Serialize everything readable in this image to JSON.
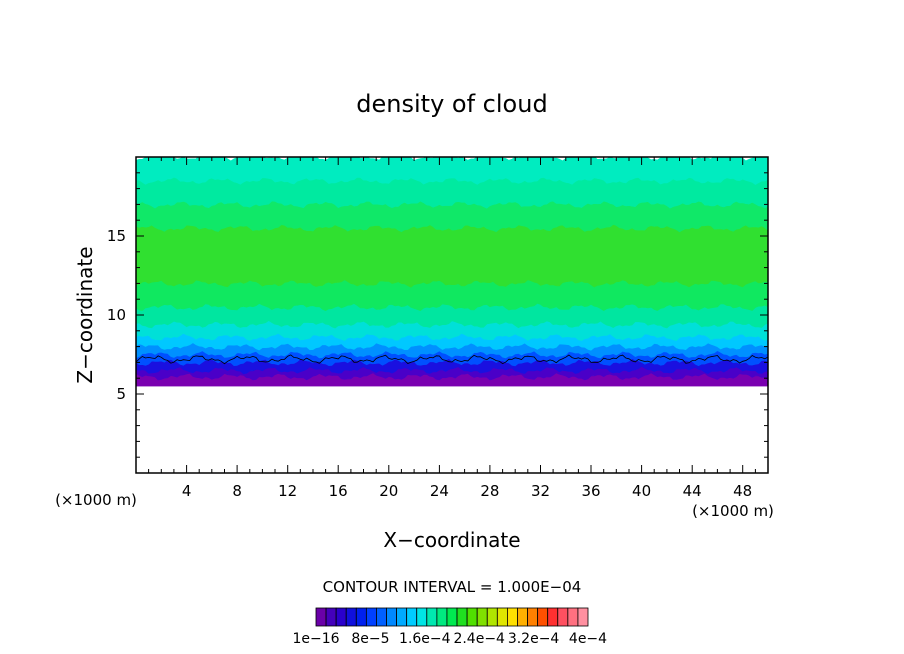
{
  "chart_data": {
    "type": "heatmap",
    "title": "density of cloud",
    "xlabel": "X−coordinate",
    "ylabel": "Z−coordinate",
    "x_unit_label": "(×1000 m)",
    "y_unit_label": "(×1000 m)",
    "xlim": [
      0,
      50
    ],
    "ylim": [
      0,
      20
    ],
    "x_ticks": [
      4,
      8,
      12,
      16,
      20,
      24,
      28,
      32,
      36,
      40,
      44,
      48
    ],
    "y_ticks": [
      5,
      10,
      15
    ],
    "contour_interval_label": "CONTOUR INTERVAL = 1.000E−04",
    "colorbar": {
      "labels": [
        "1e−16",
        "8e−5",
        "1.6e−4",
        "2.4e−4",
        "3.2e−4",
        "4e−4"
      ],
      "label_values": [
        1e-16,
        8e-05,
        0.00016,
        0.00024,
        0.00032,
        0.0004
      ],
      "colors": [
        "#6a00a8",
        "#4400bb",
        "#2a00cc",
        "#1010dd",
        "#0020ee",
        "#0040ff",
        "#0060ff",
        "#0088ff",
        "#00aaff",
        "#00ccff",
        "#00e5e5",
        "#00e8b0",
        "#00ea80",
        "#00ea50",
        "#20e020",
        "#50e000",
        "#80e000",
        "#b0e600",
        "#e0e600",
        "#ffe000",
        "#ffb000",
        "#ff8000",
        "#ff5000",
        "#ff3030",
        "#ff5060",
        "#ff7080",
        "#ff90a0"
      ]
    },
    "layers": [
      {
        "z_bottom": 0.0,
        "z_top": 5.5,
        "color": "#ffffff"
      },
      {
        "z_bottom": 5.5,
        "z_top": 6.1,
        "color": "#7a00b0"
      },
      {
        "z_bottom": 6.1,
        "z_top": 6.5,
        "color": "#4a00c8"
      },
      {
        "z_bottom": 6.5,
        "z_top": 7.0,
        "color": "#1a10e0"
      },
      {
        "z_bottom": 7.0,
        "z_top": 7.5,
        "color": "#0050ff"
      },
      {
        "z_bottom": 7.5,
        "z_top": 8.0,
        "color": "#0090ff"
      },
      {
        "z_bottom": 8.0,
        "z_top": 8.6,
        "color": "#00c8ff"
      },
      {
        "z_bottom": 8.6,
        "z_top": 9.4,
        "color": "#00e0d8"
      },
      {
        "z_bottom": 9.4,
        "z_top": 10.5,
        "color": "#00e6a0"
      },
      {
        "z_bottom": 10.5,
        "z_top": 12.0,
        "color": "#10e860"
      },
      {
        "z_bottom": 12.0,
        "z_top": 15.5,
        "color": "#30e030"
      },
      {
        "z_bottom": 15.5,
        "z_top": 17.0,
        "color": "#10e868"
      },
      {
        "z_bottom": 17.0,
        "z_top": 18.5,
        "color": "#00eaa0"
      },
      {
        "z_bottom": 18.5,
        "z_top": 20.0,
        "color": "#00ecc0"
      }
    ],
    "cloud_base_contour_z": 7.2,
    "cloud_base_jitter": 0.3
  }
}
